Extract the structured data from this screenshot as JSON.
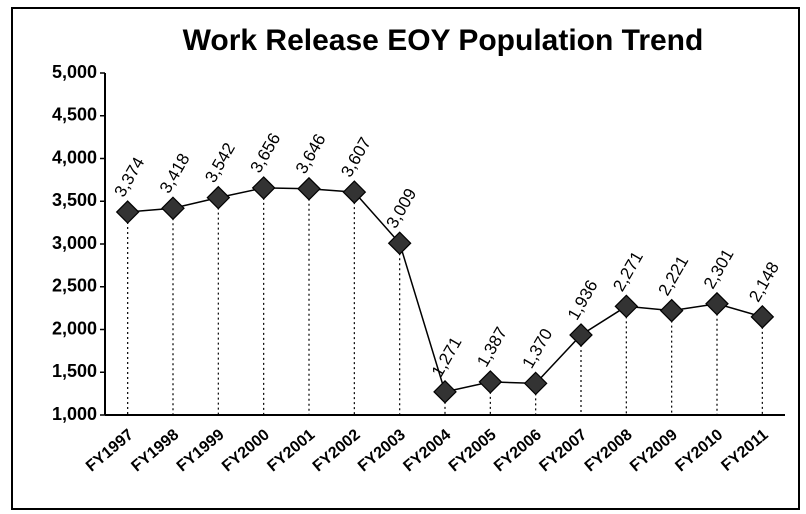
{
  "chart_data": {
    "type": "line",
    "title": "Work Release EOY Population Trend",
    "categories": [
      "FY1997",
      "FY1998",
      "FY1999",
      "FY2000",
      "FY2001",
      "FY2002",
      "FY2003",
      "FY2004",
      "FY2005",
      "FY2006",
      "FY2007",
      "FY2008",
      "FY2009",
      "FY2010",
      "FY2011"
    ],
    "values": [
      3374,
      3418,
      3542,
      3656,
      3646,
      3607,
      3009,
      1271,
      1387,
      1370,
      1936,
      2271,
      2221,
      2301,
      2148
    ],
    "value_labels": [
      "3,374",
      "3,418",
      "3,542",
      "3,656",
      "3,646",
      "3,607",
      "3,009",
      "1,271",
      "1,387",
      "1,370",
      "1,936",
      "2,271",
      "2,221",
      "2,301",
      "2,148"
    ],
    "color": "#333333",
    "ylim": [
      1000,
      5000
    ],
    "yticks": [
      {
        "value": 1000,
        "label": "1,000"
      },
      {
        "value": 1500,
        "label": "1,500"
      },
      {
        "value": 2000,
        "label": "2,000"
      },
      {
        "value": 2500,
        "label": "2,500"
      },
      {
        "value": 3000,
        "label": "3,000"
      },
      {
        "value": 3500,
        "label": "3,500"
      },
      {
        "value": 4000,
        "label": "4,000"
      },
      {
        "value": 4500,
        "label": "4,500"
      },
      {
        "value": 5000,
        "label": "5,000"
      }
    ],
    "grid": false
  }
}
